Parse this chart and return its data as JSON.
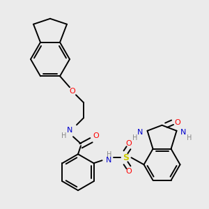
{
  "bg_color": "#ebebeb",
  "bond_color": "#000000",
  "atom_colors": {
    "N": "#0000cc",
    "O": "#ff0000",
    "S": "#cccc00",
    "H": "#888888"
  },
  "lw": 1.4,
  "fs": 7.0
}
